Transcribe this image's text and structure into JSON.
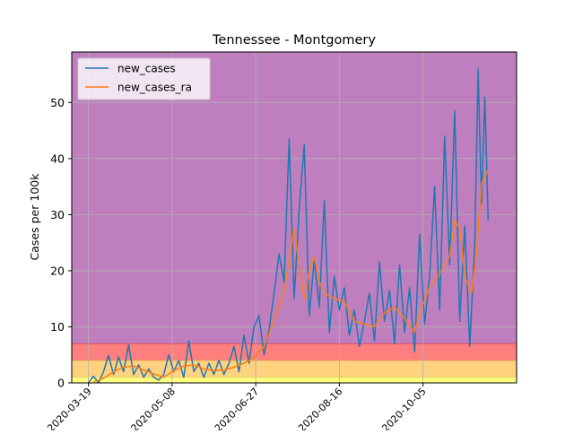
{
  "chart_data": {
    "type": "line",
    "title": "Tennessee - Montgomery",
    "xlabel": "",
    "ylabel": "Cases per 100k",
    "x_start": "2020-03-09",
    "x_end": "2020-11-30",
    "x_ticks": [
      "2020-03-19",
      "2020-05-08",
      "2020-06-27",
      "2020-08-16",
      "2020-10-05"
    ],
    "y_ticks": [
      0,
      10,
      20,
      30,
      40,
      50
    ],
    "ylim": [
      0,
      59
    ],
    "grid": true,
    "legend_position": "top-left",
    "bands": [
      {
        "from": 0,
        "to": 1,
        "color": "#ffff7f"
      },
      {
        "from": 1,
        "to": 4,
        "color": "#ffd27f"
      },
      {
        "from": 4,
        "to": 7,
        "color": "#ff7f7f"
      },
      {
        "from": 7,
        "to": 59,
        "color": "#bf7fbf"
      }
    ],
    "series": [
      {
        "name": "new_cases",
        "color": "#1f77b4",
        "points": [
          [
            "2020-03-19",
            0.0
          ],
          [
            "2020-03-22",
            1.2
          ],
          [
            "2020-03-25",
            0.0
          ],
          [
            "2020-03-28",
            2.0
          ],
          [
            "2020-03-31",
            4.9
          ],
          [
            "2020-04-03",
            1.5
          ],
          [
            "2020-04-06",
            4.6
          ],
          [
            "2020-04-09",
            2.0
          ],
          [
            "2020-04-12",
            6.8
          ],
          [
            "2020-04-15",
            1.5
          ],
          [
            "2020-04-18",
            3.2
          ],
          [
            "2020-04-21",
            1.0
          ],
          [
            "2020-04-24",
            2.5
          ],
          [
            "2020-04-27",
            1.0
          ],
          [
            "2020-04-30",
            0.5
          ],
          [
            "2020-05-03",
            1.5
          ],
          [
            "2020-05-06",
            5.0
          ],
          [
            "2020-05-09",
            2.0
          ],
          [
            "2020-05-12",
            4.0
          ],
          [
            "2020-05-15",
            1.0
          ],
          [
            "2020-05-18",
            7.5
          ],
          [
            "2020-05-21",
            2.0
          ],
          [
            "2020-05-24",
            3.5
          ],
          [
            "2020-05-27",
            1.0
          ],
          [
            "2020-05-30",
            3.5
          ],
          [
            "2020-06-02",
            1.5
          ],
          [
            "2020-06-05",
            4.0
          ],
          [
            "2020-06-08",
            1.5
          ],
          [
            "2020-06-11",
            3.5
          ],
          [
            "2020-06-14",
            6.5
          ],
          [
            "2020-06-17",
            2.0
          ],
          [
            "2020-06-20",
            8.5
          ],
          [
            "2020-06-23",
            3.5
          ],
          [
            "2020-06-26",
            10.0
          ],
          [
            "2020-06-29",
            12.0
          ],
          [
            "2020-07-02",
            5.0
          ],
          [
            "2020-07-05",
            9.5
          ],
          [
            "2020-07-08",
            16.0
          ],
          [
            "2020-07-11",
            23.0
          ],
          [
            "2020-07-14",
            18.0
          ],
          [
            "2020-07-17",
            43.5
          ],
          [
            "2020-07-20",
            15.0
          ],
          [
            "2020-07-23",
            31.0
          ],
          [
            "2020-07-26",
            42.5
          ],
          [
            "2020-07-29",
            12.0
          ],
          [
            "2020-08-01",
            22.0
          ],
          [
            "2020-08-04",
            13.5
          ],
          [
            "2020-08-07",
            32.5
          ],
          [
            "2020-08-10",
            9.0
          ],
          [
            "2020-08-13",
            19.0
          ],
          [
            "2020-08-16",
            13.0
          ],
          [
            "2020-08-19",
            17.0
          ],
          [
            "2020-08-22",
            8.5
          ],
          [
            "2020-08-25",
            13.0
          ],
          [
            "2020-08-28",
            6.5
          ],
          [
            "2020-08-31",
            11.0
          ],
          [
            "2020-09-03",
            16.0
          ],
          [
            "2020-09-06",
            7.5
          ],
          [
            "2020-09-09",
            21.5
          ],
          [
            "2020-09-12",
            11.0
          ],
          [
            "2020-09-15",
            16.5
          ],
          [
            "2020-09-18",
            7.0
          ],
          [
            "2020-09-21",
            21.0
          ],
          [
            "2020-09-24",
            9.0
          ],
          [
            "2020-09-27",
            17.0
          ],
          [
            "2020-09-30",
            5.5
          ],
          [
            "2020-10-03",
            26.5
          ],
          [
            "2020-10-06",
            10.5
          ],
          [
            "2020-10-09",
            19.0
          ],
          [
            "2020-10-12",
            35.0
          ],
          [
            "2020-10-15",
            13.0
          ],
          [
            "2020-10-18",
            44.0
          ],
          [
            "2020-10-21",
            21.0
          ],
          [
            "2020-10-24",
            48.5
          ],
          [
            "2020-10-27",
            11.0
          ],
          [
            "2020-10-30",
            28.0
          ],
          [
            "2020-11-02",
            6.5
          ],
          [
            "2020-11-05",
            25.0
          ],
          [
            "2020-11-07",
            56.0
          ],
          [
            "2020-11-09",
            32.0
          ],
          [
            "2020-11-11",
            51.0
          ],
          [
            "2020-11-13",
            29.0
          ]
        ]
      },
      {
        "name": "new_cases_ra",
        "color": "#ff7f0e",
        "points": [
          [
            "2020-03-22",
            0.2
          ],
          [
            "2020-03-28",
            0.8
          ],
          [
            "2020-04-03",
            2.0
          ],
          [
            "2020-04-09",
            2.8
          ],
          [
            "2020-04-15",
            3.0
          ],
          [
            "2020-04-21",
            2.3
          ],
          [
            "2020-04-27",
            1.6
          ],
          [
            "2020-05-03",
            1.0
          ],
          [
            "2020-05-09",
            2.2
          ],
          [
            "2020-05-15",
            3.0
          ],
          [
            "2020-05-21",
            3.2
          ],
          [
            "2020-05-27",
            2.5
          ],
          [
            "2020-06-02",
            2.2
          ],
          [
            "2020-06-08",
            2.3
          ],
          [
            "2020-06-14",
            2.8
          ],
          [
            "2020-06-20",
            3.5
          ],
          [
            "2020-06-26",
            4.5
          ],
          [
            "2020-07-02",
            6.5
          ],
          [
            "2020-07-08",
            11.0
          ],
          [
            "2020-07-14",
            16.5
          ],
          [
            "2020-07-17",
            22.0
          ],
          [
            "2020-07-20",
            27.5
          ],
          [
            "2020-07-23",
            21.0
          ],
          [
            "2020-07-26",
            15.0
          ],
          [
            "2020-07-29",
            20.0
          ],
          [
            "2020-08-01",
            22.5
          ],
          [
            "2020-08-04",
            18.0
          ],
          [
            "2020-08-07",
            16.0
          ],
          [
            "2020-08-13",
            15.0
          ],
          [
            "2020-08-19",
            14.5
          ],
          [
            "2020-08-25",
            11.0
          ],
          [
            "2020-08-31",
            10.5
          ],
          [
            "2020-09-06",
            10.0
          ],
          [
            "2020-09-12",
            12.5
          ],
          [
            "2020-09-18",
            13.5
          ],
          [
            "2020-09-24",
            11.5
          ],
          [
            "2020-09-30",
            9.0
          ],
          [
            "2020-10-03",
            12.5
          ],
          [
            "2020-10-09",
            17.0
          ],
          [
            "2020-10-15",
            19.5
          ],
          [
            "2020-10-21",
            22.5
          ],
          [
            "2020-10-24",
            29.0
          ],
          [
            "2020-10-27",
            27.5
          ],
          [
            "2020-10-30",
            19.0
          ],
          [
            "2020-11-03",
            16.0
          ],
          [
            "2020-11-06",
            23.0
          ],
          [
            "2020-11-09",
            35.5
          ],
          [
            "2020-11-13",
            38.0
          ]
        ]
      }
    ]
  }
}
